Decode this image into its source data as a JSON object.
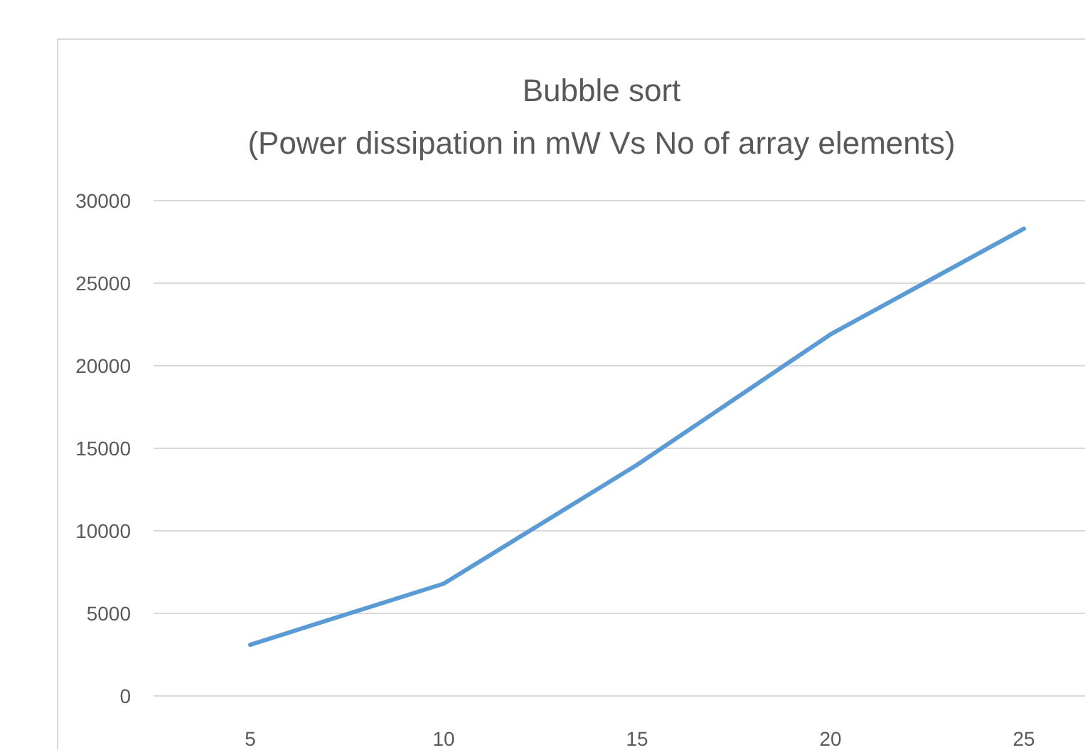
{
  "chart_data": {
    "type": "line",
    "title": "Bubble sort",
    "subtitle": "(Power dissipation in mW Vs No of array elements)",
    "categories": [
      "5",
      "10",
      "15",
      "20",
      "25"
    ],
    "series": [
      {
        "color": "#5b9bd5",
        "values": [
          3100,
          6800,
          14000,
          21900,
          28300
        ]
      }
    ],
    "ylim": [
      0,
      30000
    ],
    "yticks": [
      0,
      5000,
      10000,
      15000,
      20000,
      25000,
      30000
    ],
    "grid": "y"
  }
}
